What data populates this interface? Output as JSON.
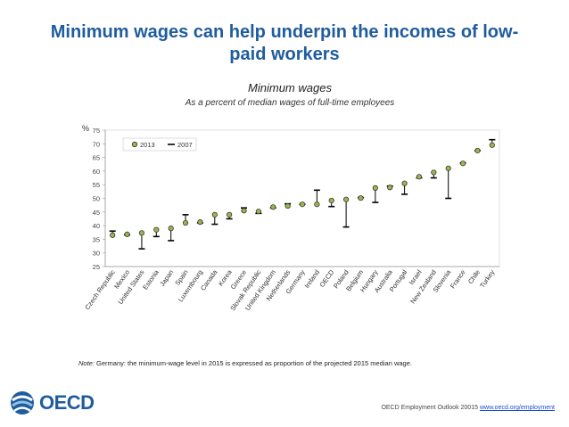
{
  "slide": {
    "title": "Minimum wages can help underpin the incomes of low-paid workers",
    "note_prefix": "Note:",
    "note_text": " Germany: the minimum-wage level in 2015 is expressed as proportion of the projected 2015 median wage.",
    "source_text": "OECD Employment Outlook 20015",
    "source_link": "www.oecd.org/employment",
    "logo_text": "OECD"
  },
  "colors": {
    "title": "#1f5c9e",
    "marker_fill": "#9ab84a",
    "marker_stroke": "#333333",
    "range_line": "#000000",
    "axis": "#999999"
  },
  "chart_data": {
    "type": "scatter",
    "title": "Minimum wages",
    "subtitle": "As a percent of median wages of full-time employees",
    "ylabel": "%",
    "xlabel": "",
    "ylim": [
      25,
      75
    ],
    "yticks": [
      25,
      30,
      35,
      40,
      45,
      50,
      55,
      60,
      65,
      70,
      75
    ],
    "grid": false,
    "legend_position": "top-left",
    "categories": [
      "Czech Republic",
      "Mexico",
      "United States",
      "Estonia",
      "Japan",
      "Spain",
      "Luxembourg",
      "Canada",
      "Korea",
      "Greece",
      "Slovak Republic",
      "United Kingdom",
      "Netherlands",
      "Germany",
      "Ireland",
      "OECD",
      "Poland",
      "Belgium",
      "Hungary",
      "Australia",
      "Portugal",
      "Israel",
      "New Zealand",
      "Slovenia",
      "France",
      "Chile",
      "Turkey"
    ],
    "series": [
      {
        "name": "2013",
        "values": [
          36.5,
          36.8,
          37.3,
          38.5,
          39,
          41,
          41.3,
          44,
          44,
          45.5,
          45.2,
          46.8,
          47.2,
          47.8,
          47.8,
          49.2,
          49.6,
          50.1,
          53.8,
          54,
          55.5,
          57.9,
          59.5,
          61,
          62.8,
          67.5,
          69.5
        ]
      },
      {
        "name": "2007",
        "values": [
          38,
          36.6,
          31.5,
          36,
          34.5,
          44,
          41,
          40.5,
          42.5,
          46.5,
          44.5,
          46.5,
          48,
          47.8,
          53,
          47,
          39.5,
          50.3,
          48.5,
          54.5,
          51.5,
          57.5,
          57.5,
          50,
          63,
          67.5,
          71.5
        ]
      }
    ]
  }
}
